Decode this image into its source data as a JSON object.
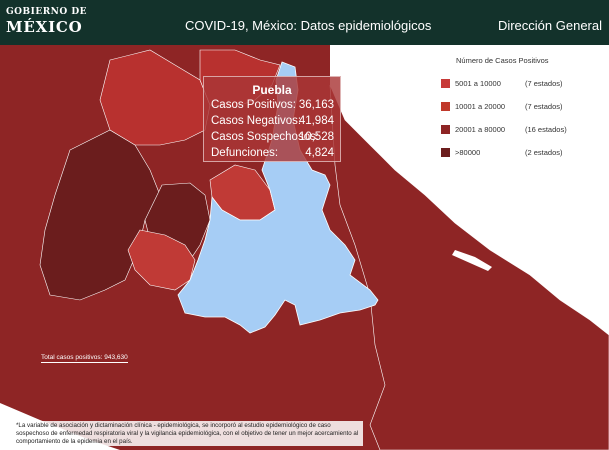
{
  "header": {
    "logo_line1": "GOBIERNO DE",
    "logo_line2": "MÉXICO",
    "title": "COVID-19, México: Datos epidemiológicos",
    "department": "Dirección General"
  },
  "legend": {
    "title": "Número de Casos Positivos",
    "items": [
      {
        "range": "5001 a  10000",
        "count": "(7 estados)",
        "color": "#c73a38"
      },
      {
        "range": "10001 a  20000",
        "count": "(7 estados)",
        "color": "#c0392b"
      },
      {
        "range": "20001 a  80000",
        "count": "(16 estados)",
        "color": "#8e2525"
      },
      {
        "range": ">80000",
        "count": "(2 estados)",
        "color": "#6b1d1d"
      }
    ]
  },
  "tooltip": {
    "state": "Puebla",
    "rows": [
      {
        "label": "Casos Positivos:",
        "value": "36,163"
      },
      {
        "label": "Casos Negativos:",
        "value": "41,984"
      },
      {
        "label": "Casos Sospechosos:",
        "value": "10,528"
      },
      {
        "label": "Defunciones:",
        "value": "4,824"
      }
    ]
  },
  "total_label": "Total casos positivos: 943,630",
  "footnote": "*La variable de asociación y dictaminación clínica - epidemiológica, se incorporó al estudio epidemiológico de caso sospechoso de enfermedad respiratoria viral y la vigilancia epidemiológica, con el objetivo de tener un mejor acercamiento al comportamiento de la epidemia en el país.",
  "colors": {
    "header_bg": "#13322b",
    "base_state": "#8e2525",
    "dark_state": "#6b1d1d",
    "light_state": "#c0392b",
    "highlight_state": "#a6cdf5",
    "sea": "#ffffff"
  }
}
